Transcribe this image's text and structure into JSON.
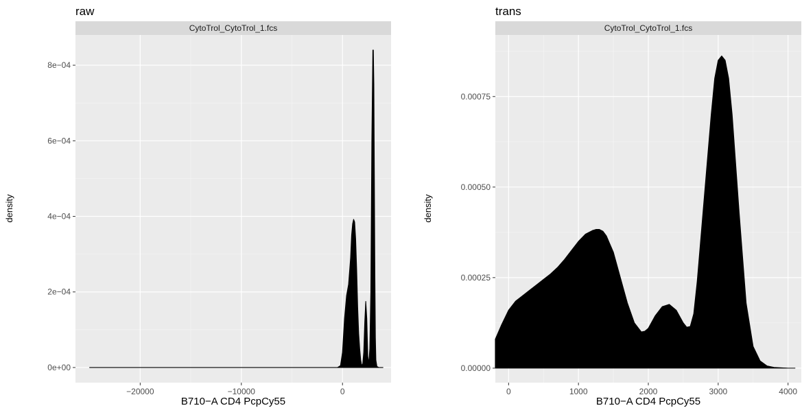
{
  "chart_data": [
    {
      "type": "area",
      "title": "raw",
      "facet_label": "CytoTrol_CytoTrol_1.fcs",
      "xlabel": "B710−A CD4 PcpCy55",
      "ylabel": "density",
      "xlim": [
        -26400,
        4800
      ],
      "ylim": [
        -4e-05,
        0.00088
      ],
      "xticks": [
        -20000,
        -10000,
        0
      ],
      "xtick_labels": [
        "−20000",
        "−10000",
        "0"
      ],
      "yticks": [
        0,
        0.0002,
        0.0004,
        0.0006,
        0.0008
      ],
      "ytick_labels": [
        "0e+00",
        "2e−04",
        "4e−04",
        "6e−04",
        "8e−04"
      ],
      "grid": true,
      "fill_color": "#000000",
      "panel_color": "#ebebeb",
      "strip_color": "#d9d9d9",
      "series": [
        {
          "x": [
            -25000,
            -20000,
            -15000,
            -10000,
            -5000,
            -2000,
            -500,
            -200,
            0,
            200,
            400,
            600,
            800,
            900,
            1000,
            1100,
            1200,
            1300,
            1400,
            1500,
            1600,
            1700,
            1800,
            1900,
            2000,
            2100,
            2200,
            2300,
            2400,
            2500,
            2600,
            2700,
            2800,
            2900,
            3000,
            3050,
            3100,
            3150,
            3200,
            3250,
            3300,
            3400,
            3600,
            4000
          ],
          "y": [
            0,
            0,
            0,
            0,
            0,
            0,
            0,
            5e-06,
            4e-05,
            0.00013,
            0.00019,
            0.00022,
            0.00029,
            0.00035,
            0.00038,
            0.000392,
            0.000385,
            0.00034,
            0.00026,
            0.00016,
            9e-05,
            5e-05,
            2e-05,
            5e-06,
            1e-05,
            4e-05,
            0.00012,
            0.000175,
            0.00013,
            3e-05,
            1e-05,
            5e-05,
            0.0002,
            0.0006,
            0.00084,
            0.00084,
            0.00075,
            0.0005,
            0.00025,
            8e-05,
            2e-05,
            3e-06,
            0,
            0
          ]
        }
      ]
    },
    {
      "type": "area",
      "title": "trans",
      "facet_label": "CytoTrol_CytoTrol_1.fcs",
      "xlabel": "B710−A CD4 PcpCy55",
      "ylabel": "density",
      "xlim": [
        -190,
        4190
      ],
      "ylim": [
        -4e-05,
        0.00092
      ],
      "xticks": [
        0,
        1000,
        2000,
        3000,
        4000
      ],
      "xtick_labels": [
        "0",
        "1000",
        "2000",
        "3000",
        "4000"
      ],
      "yticks": [
        0,
        0.00025,
        0.0005,
        0.00075
      ],
      "ytick_labels": [
        "0.00000",
        "0.00025",
        "0.00050",
        "0.00075"
      ],
      "grid": true,
      "fill_color": "#000000",
      "panel_color": "#ebebeb",
      "strip_color": "#d9d9d9",
      "series": [
        {
          "x": [
            -190,
            -100,
            0,
            100,
            200,
            300,
            400,
            500,
            600,
            700,
            800,
            900,
            1000,
            1100,
            1200,
            1250,
            1300,
            1350,
            1400,
            1500,
            1600,
            1700,
            1800,
            1900,
            1950,
            2000,
            2100,
            2200,
            2300,
            2400,
            2500,
            2550,
            2600,
            2650,
            2700,
            2800,
            2900,
            2950,
            3000,
            3050,
            3100,
            3150,
            3200,
            3300,
            3400,
            3500,
            3600,
            3700,
            3800,
            4000,
            4100
          ],
          "y": [
            8e-05,
            0.00012,
            0.00016,
            0.000185,
            0.0002,
            0.000215,
            0.00023,
            0.000245,
            0.00026,
            0.000278,
            0.0003,
            0.000325,
            0.00035,
            0.00037,
            0.00038,
            0.000383,
            0.000383,
            0.000378,
            0.000365,
            0.00032,
            0.00025,
            0.00018,
            0.000125,
            0.0001,
            0.000102,
            0.00011,
            0.000145,
            0.00017,
            0.000176,
            0.00016,
            0.000125,
            0.000113,
            0.000115,
            0.00015,
            0.00024,
            0.00047,
            0.0007,
            0.0008,
            0.00085,
            0.000862,
            0.00085,
            0.0008,
            0.0007,
            0.00043,
            0.00018,
            6e-05,
            2e-05,
            6e-06,
            2e-06,
            0,
            0
          ]
        }
      ]
    }
  ]
}
